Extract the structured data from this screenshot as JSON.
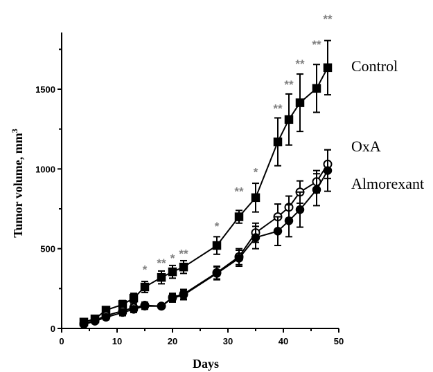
{
  "chart_data": {
    "type": "line",
    "xlabel": "Days",
    "ylabel_main": "Tumor volume, mm",
    "ylabel_sup": "3",
    "xlim": [
      0,
      50
    ],
    "ylim": [
      0,
      1850
    ],
    "x_ticks": [
      0,
      10,
      20,
      30,
      40,
      50
    ],
    "x_tick_labels": [
      "0",
      "10",
      "20",
      "30",
      "40",
      "50"
    ],
    "y_ticks": [
      0,
      500,
      1000,
      1500
    ],
    "y_tick_labels": [
      "0",
      "500",
      "1000",
      "1500"
    ],
    "grid": false,
    "series": [
      {
        "name": "Control",
        "marker": "square-filled",
        "x": [
          4,
          6,
          8,
          11,
          13,
          15,
          18,
          20,
          22,
          28,
          32,
          35,
          39,
          41,
          43,
          46,
          48
        ],
        "y": [
          40,
          60,
          115,
          150,
          190,
          260,
          320,
          355,
          385,
          520,
          700,
          820,
          1170,
          1310,
          1415,
          1505,
          1635
        ],
        "err": [
          15,
          15,
          20,
          25,
          30,
          35,
          40,
          40,
          40,
          55,
          40,
          90,
          150,
          160,
          180,
          150,
          170
        ]
      },
      {
        "name": "OxA",
        "marker": "circle-open",
        "x": [
          4,
          6,
          8,
          11,
          13,
          15,
          18,
          20,
          22,
          28,
          32,
          35,
          39,
          41,
          43,
          46,
          48
        ],
        "y": [
          30,
          50,
          80,
          110,
          130,
          145,
          140,
          195,
          215,
          350,
          450,
          600,
          700,
          760,
          855,
          920,
          1030
        ],
        "err": [
          10,
          12,
          15,
          20,
          20,
          20,
          15,
          25,
          30,
          40,
          50,
          60,
          80,
          70,
          70,
          70,
          90
        ]
      },
      {
        "name": "Almorexant",
        "marker": "circle-filled",
        "x": [
          4,
          6,
          8,
          11,
          13,
          15,
          18,
          20,
          22,
          28,
          32,
          35,
          39,
          41,
          43,
          46,
          48
        ],
        "y": [
          25,
          45,
          70,
          100,
          120,
          140,
          140,
          190,
          210,
          345,
          440,
          570,
          610,
          675,
          745,
          870,
          990
        ],
        "err": [
          10,
          12,
          15,
          20,
          20,
          20,
          15,
          25,
          30,
          40,
          50,
          70,
          90,
          100,
          110,
          100,
          130
        ]
      }
    ],
    "annotations": [
      {
        "x": 15,
        "y": 380,
        "text": "*"
      },
      {
        "x": 18,
        "y": 420,
        "text": "**"
      },
      {
        "x": 20,
        "y": 450,
        "text": "*"
      },
      {
        "x": 22,
        "y": 480,
        "text": "**"
      },
      {
        "x": 28,
        "y": 650,
        "text": "*"
      },
      {
        "x": 32,
        "y": 870,
        "text": "**"
      },
      {
        "x": 35,
        "y": 990,
        "text": "*"
      },
      {
        "x": 39,
        "y": 1390,
        "text": "**"
      },
      {
        "x": 41,
        "y": 1540,
        "text": "**"
      },
      {
        "x": 43,
        "y": 1670,
        "text": "**"
      },
      {
        "x": 46,
        "y": 1790,
        "text": "**"
      },
      {
        "x": 48,
        "y": 1950,
        "text": "**"
      }
    ],
    "legend_placement": "right (direct labels)"
  }
}
